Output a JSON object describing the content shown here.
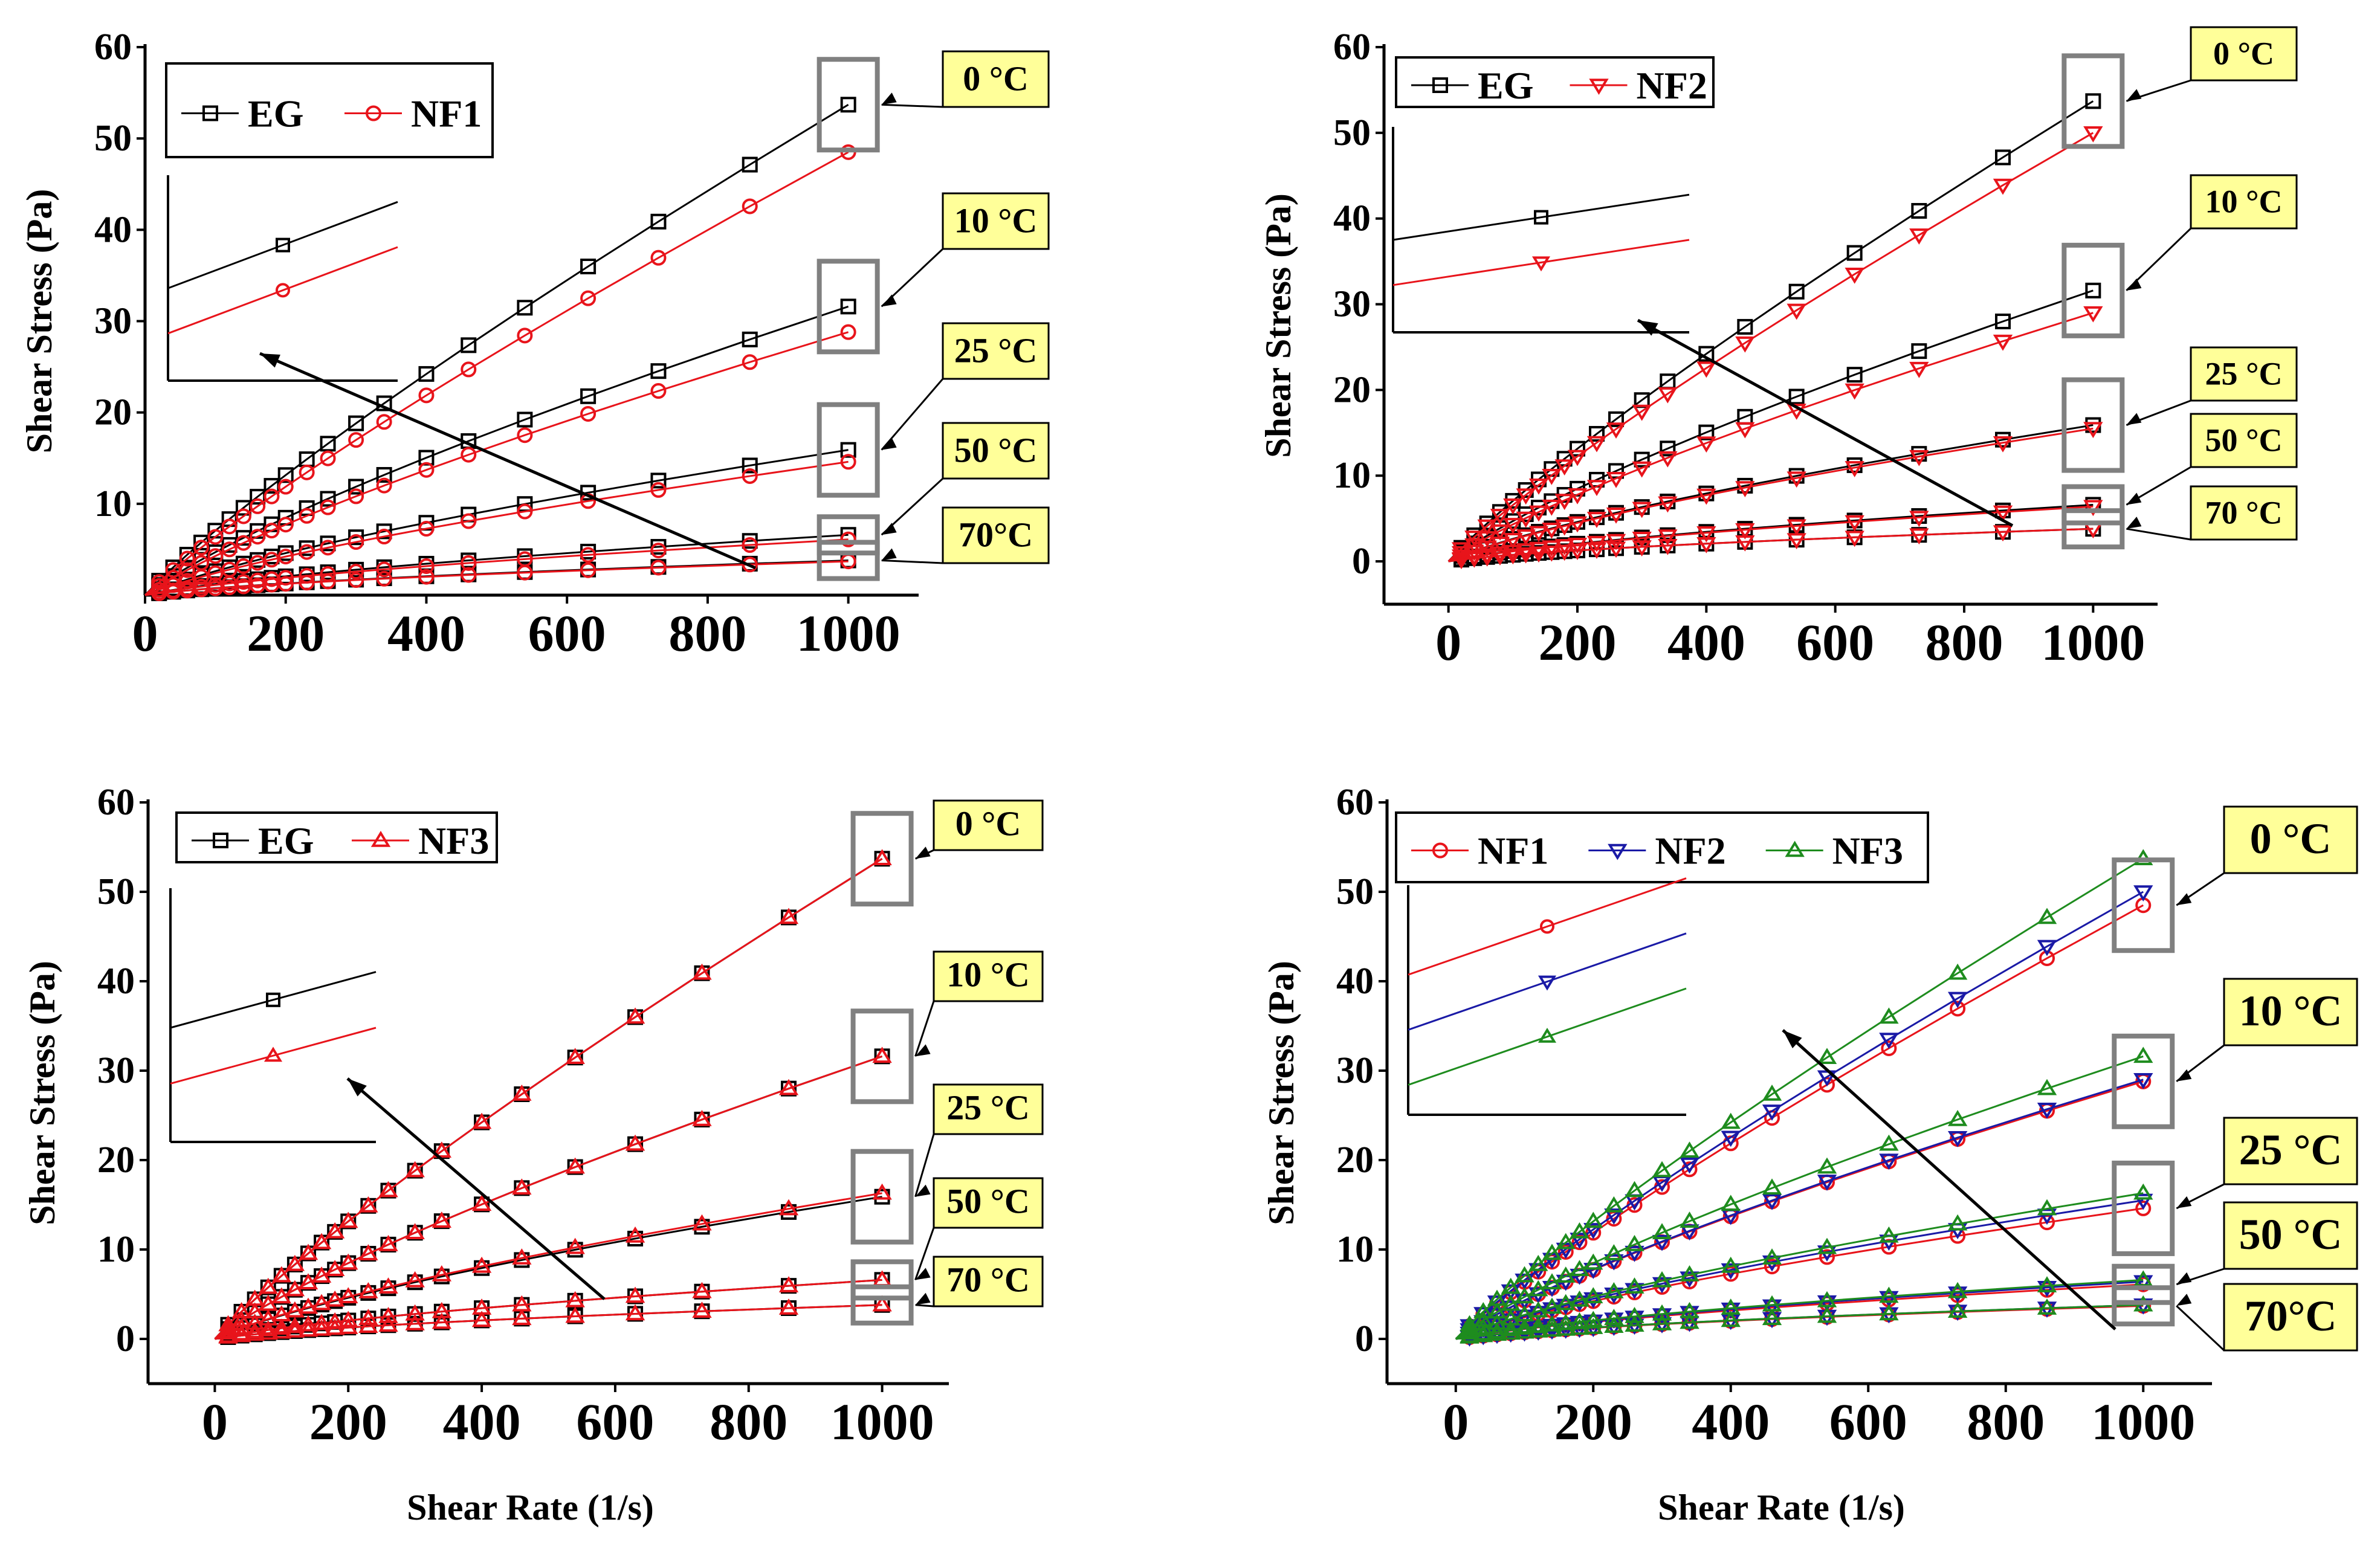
{
  "figure": {
    "shared": {
      "x": [
        0,
        20,
        40,
        60,
        80,
        100,
        120,
        140,
        160,
        180,
        200,
        230,
        260,
        300,
        340,
        400,
        460,
        540,
        630,
        730,
        860,
        1000
      ],
      "xlabel": "Shear Rate (1/s)",
      "ylabel": "Shear Stress (Pa)",
      "xticks": [
        0,
        200,
        400,
        600,
        800,
        1000
      ],
      "yticks": [
        10,
        20,
        30,
        40,
        50,
        60
      ],
      "temperature_labels": [
        "0 °C",
        "10 °C",
        "25 °C",
        "50 °C",
        "70 °C"
      ],
      "EG_endpoints": [
        53.7,
        31.6,
        15.9,
        6.6,
        3.8
      ]
    },
    "colors": {
      "EG": "#000000",
      "NF1": "#e8141b",
      "NF2": "#e8141b",
      "NF3": "#e8141b",
      "NF2_blue": "#1a1aa6",
      "NF3_green": "#1e8c1e",
      "label_bg": "#ffff99",
      "box": "#808080"
    }
  },
  "chart_data": [
    {
      "type": "line",
      "panel": "top-left",
      "legend": [
        "EG",
        "NF1"
      ],
      "xlabel": "",
      "ylabel": "Shear Stress (Pa)",
      "xlim": [
        0,
        1100
      ],
      "ylim": [
        0,
        60
      ],
      "xticks": [
        0,
        200,
        400,
        600,
        800,
        1000
      ],
      "yticks": [
        10,
        20,
        30,
        40,
        50,
        60
      ],
      "temperature_labels": [
        "0 °C",
        "10 °C",
        "25 °C",
        "50 °C",
        "70°C"
      ],
      "series": [
        {
          "name": "EG",
          "marker": "square",
          "color": "#000000",
          "endpoints": [
            53.7,
            31.6,
            15.9,
            6.6,
            3.8
          ]
        },
        {
          "name": "NF1",
          "marker": "circle",
          "color": "#e8141b",
          "endpoints": [
            48.5,
            28.8,
            14.6,
            6.1,
            3.7
          ]
        }
      ]
    },
    {
      "type": "line",
      "panel": "top-right",
      "legend": [
        "EG",
        "NF2"
      ],
      "xlabel": "",
      "ylabel": "Shear Stress (Pa)",
      "xlim": [
        -100,
        1100
      ],
      "ylim": [
        -5,
        60
      ],
      "xticks": [
        0,
        200,
        400,
        600,
        800,
        1000
      ],
      "yticks": [
        0,
        10,
        20,
        30,
        40,
        50,
        60
      ],
      "temperature_labels": [
        "0 °C",
        "10 °C",
        "25 °C",
        "50 °C",
        "70 °C"
      ],
      "series": [
        {
          "name": "EG",
          "marker": "square",
          "color": "#000000",
          "endpoints": [
            53.7,
            31.6,
            15.9,
            6.6,
            3.8
          ]
        },
        {
          "name": "NF2",
          "marker": "triangle-down",
          "color": "#e8141b",
          "endpoints": [
            50.0,
            29.0,
            15.5,
            6.4,
            3.8
          ]
        }
      ]
    },
    {
      "type": "line",
      "panel": "bottom-left",
      "legend": [
        "EG",
        "NF3"
      ],
      "xlabel": "Shear Rate (1/s)",
      "ylabel": "Shear Stress (Pa)",
      "xlim": [
        -100,
        1100
      ],
      "ylim": [
        -5,
        60
      ],
      "xticks": [
        0,
        200,
        400,
        600,
        800,
        1000
      ],
      "yticks": [
        0,
        10,
        20,
        30,
        40,
        50,
        60
      ],
      "temperature_labels": [
        "0 °C",
        "10 °C",
        "25 °C",
        "50 °C",
        "70 °C"
      ],
      "series": [
        {
          "name": "EG",
          "marker": "square",
          "color": "#000000",
          "endpoints": [
            53.7,
            31.6,
            15.9,
            6.6,
            3.8
          ]
        },
        {
          "name": "NF3",
          "marker": "triangle-up",
          "color": "#e8141b",
          "endpoints": [
            53.7,
            31.6,
            16.3,
            6.6,
            3.8
          ]
        }
      ]
    },
    {
      "type": "line",
      "panel": "bottom-right",
      "legend": [
        "NF1",
        "NF2",
        "NF3"
      ],
      "xlabel": "Shear Rate (1/s)",
      "ylabel": "Shear Stress (Pa)",
      "xlim": [
        -100,
        1100
      ],
      "ylim": [
        -5,
        60
      ],
      "xticks": [
        0,
        200,
        400,
        600,
        800,
        1000
      ],
      "yticks": [
        0,
        10,
        20,
        30,
        40,
        50,
        60
      ],
      "temperature_labels": [
        "0 °C",
        "10 °C",
        "25 °C",
        "50 °C",
        "70°C"
      ],
      "series": [
        {
          "name": "NF1",
          "marker": "circle",
          "color": "#e8141b",
          "endpoints": [
            48.5,
            28.8,
            14.6,
            6.1,
            3.7
          ]
        },
        {
          "name": "NF2",
          "marker": "triangle-down",
          "color": "#1a1aa6",
          "endpoints": [
            50.0,
            29.0,
            15.5,
            6.4,
            3.8
          ]
        },
        {
          "name": "NF3",
          "marker": "triangle-up",
          "color": "#1e8c1e",
          "endpoints": [
            53.7,
            31.6,
            16.3,
            6.6,
            3.8
          ]
        }
      ]
    }
  ]
}
